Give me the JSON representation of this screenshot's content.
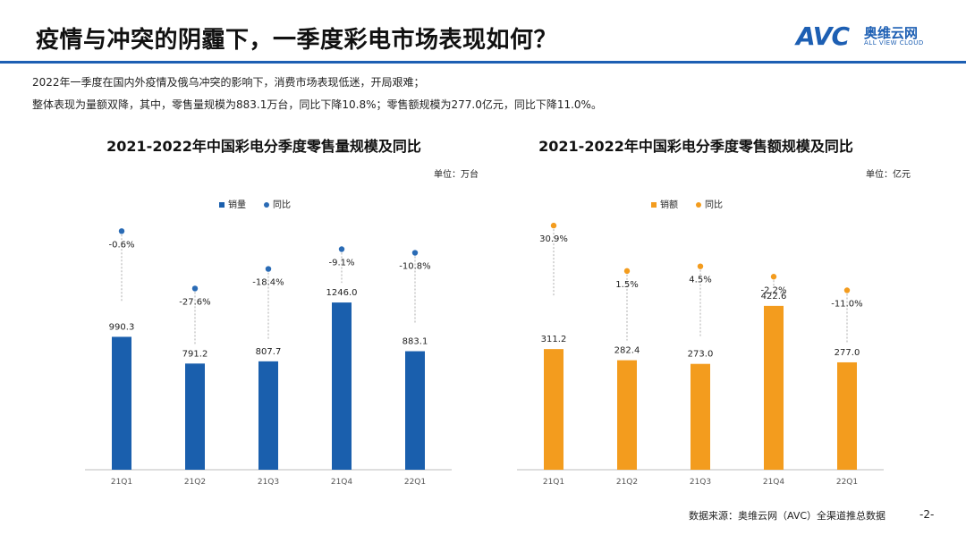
{
  "header": {
    "title": "疫情与冲突的阴霾下，一季度彩电市场表现如何？",
    "logo_mark": "AVC",
    "logo_cn": "奥维云网",
    "logo_en": "ALL VIEW CLOUD"
  },
  "description": {
    "line1": "2022年一季度在国内外疫情及俄乌冲突的影响下，消费市场表现低迷，开局艰难；",
    "line2": "整体表现为量额双降，其中，零售量规模为883.1万台，同比下降10.8%；零售额规模为277.0亿元，同比下降11.0%。"
  },
  "colors": {
    "brand": "#1d5fb3",
    "volume_bar": "#1a5fad",
    "value_bar": "#f39c1e"
  },
  "chart_data": [
    {
      "type": "bar",
      "title": "2021-2022年中国彩电分季度零售量规模及同比",
      "unit": "单位：万台",
      "categories": [
        "21Q1",
        "21Q2",
        "21Q3",
        "21Q4",
        "22Q1"
      ],
      "series": [
        {
          "name": "销量",
          "values": [
            990.3,
            791.2,
            807.7,
            1246.0,
            883.1
          ],
          "labels": [
            "990.3",
            "791.2",
            "807.7",
            "1246.0",
            "883.1"
          ]
        },
        {
          "name": "同比",
          "values": [
            -0.6,
            -27.6,
            -18.4,
            -9.1,
            -10.8
          ],
          "labels": [
            "-0.6%",
            "-27.6%",
            "-18.4%",
            "-9.1%",
            "-10.8%"
          ]
        }
      ],
      "ylim": [
        0,
        1300
      ],
      "yoy_lim": [
        -35,
        5
      ]
    },
    {
      "type": "bar",
      "title": "2021-2022年中国彩电分季度零售额规模及同比",
      "unit": "单位：亿元",
      "categories": [
        "21Q1",
        "21Q2",
        "21Q3",
        "21Q4",
        "22Q1"
      ],
      "series": [
        {
          "name": "销额",
          "values": [
            311.2,
            282.4,
            273.0,
            422.6,
            277.0
          ],
          "labels": [
            "311.2",
            "282.4",
            "273.0",
            "422.6",
            "277.0"
          ]
        },
        {
          "name": "同比",
          "values": [
            30.9,
            1.5,
            4.5,
            -2.2,
            -11.0
          ],
          "labels": [
            "30.9%",
            "1.5%",
            "4.5%",
            "-2.2%",
            "-11.0%"
          ]
        }
      ],
      "ylim": [
        0,
        450
      ],
      "yoy_lim": [
        -20,
        35
      ]
    }
  ],
  "footer": {
    "source": "数据来源：奥维云网（AVC）全渠道推总数据",
    "page": "-2-"
  }
}
